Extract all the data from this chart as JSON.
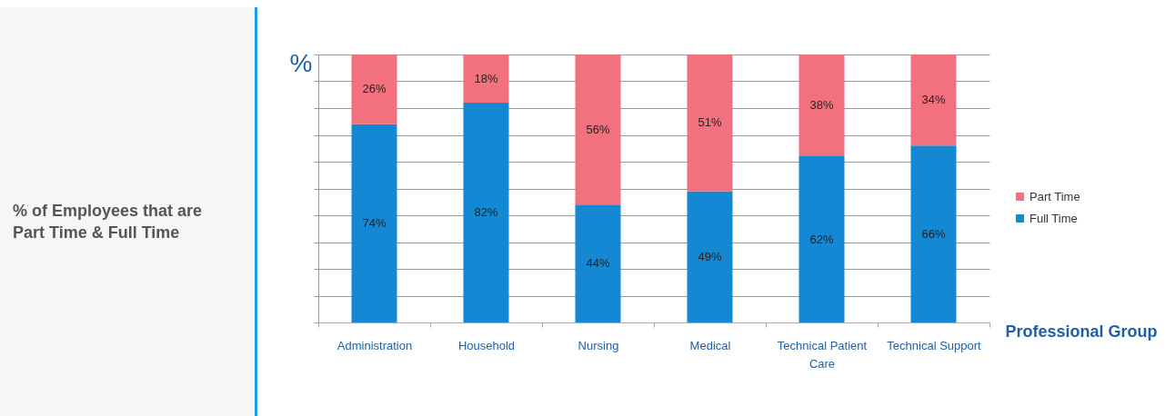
{
  "chart_data": {
    "type": "bar",
    "title": "% of Employees that are Part Time & Full Time",
    "xlabel": "Professional Group",
    "ylabel": "%",
    "stacked": true,
    "categories": [
      "Administration",
      "Household",
      "Nursing",
      "Medical",
      "Technical Patient Care",
      "Technical Support"
    ],
    "series": [
      {
        "name": "Full Time",
        "color": "#1488d2",
        "values": [
          74,
          82,
          44,
          49,
          62,
          66
        ],
        "value_labels": [
          "74%",
          "82%",
          "44%",
          "49%",
          "62%",
          "66%"
        ]
      },
      {
        "name": "Part Time",
        "color": "#f2717f",
        "values": [
          26,
          18,
          56,
          51,
          38,
          34
        ],
        "value_labels": [
          "26%",
          "18%",
          "56%",
          "51%",
          "38%",
          "34%"
        ]
      }
    ],
    "ylim": [
      0,
      100
    ],
    "yticks": [
      {
        "value": 0,
        "label": null
      },
      {
        "value": 10,
        "label": null
      },
      {
        "value": 20,
        "label": null
      },
      {
        "value": 30,
        "label": null
      },
      {
        "value": 40,
        "label": null
      },
      {
        "value": 50,
        "label": null
      },
      {
        "value": 60,
        "label": null
      },
      {
        "value": 70,
        "label": null
      },
      {
        "value": 80,
        "label": null
      },
      {
        "value": 90,
        "label": null
      },
      {
        "value": 100,
        "label": null
      }
    ],
    "grid": "y",
    "legend": "right",
    "tick_labels": "x"
  }
}
